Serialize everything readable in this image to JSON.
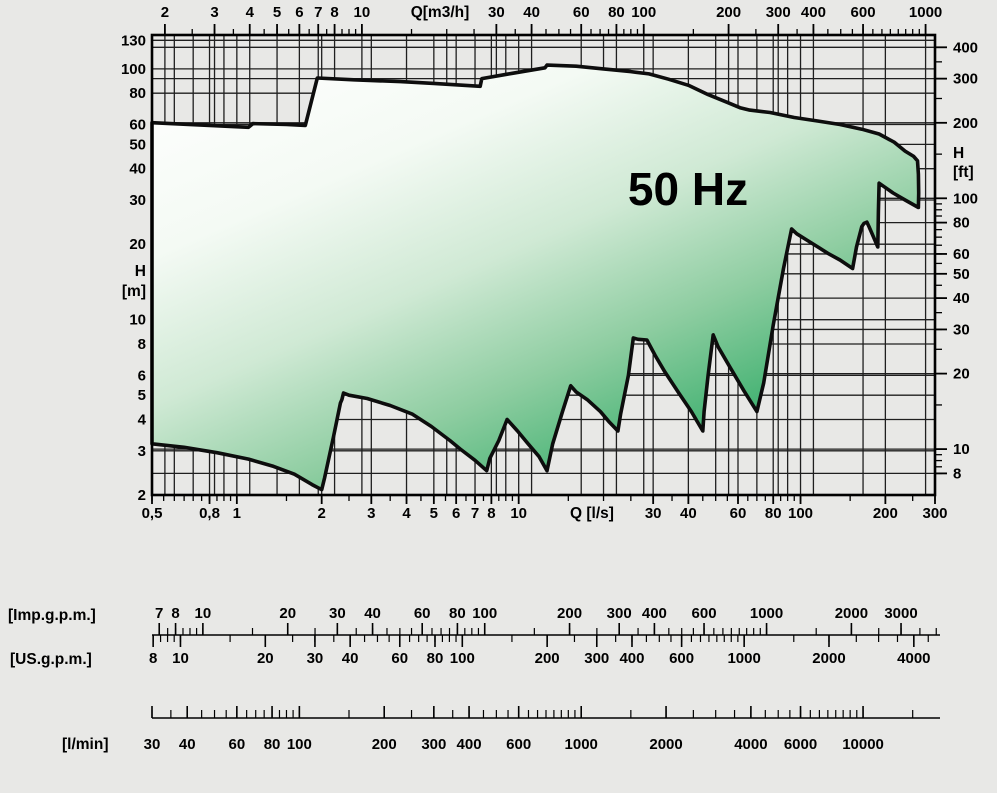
{
  "title": "50 Hz",
  "chart_data": {
    "type": "area",
    "description": "Pump family hydraulic coverage envelope (head H vs flow Q) on log-log axes",
    "title": "50 Hz",
    "grid": true,
    "legend": "none",
    "axes": {
      "q_ls": {
        "label": "Q [l/s]",
        "min": 0.5,
        "max": 300,
        "tick_labels": [
          "0,5",
          "0,8",
          "1",
          "2",
          "3",
          "4",
          "5",
          "6",
          "7",
          "8",
          "10",
          "30",
          "40",
          "60",
          "80",
          "100",
          "200",
          "300"
        ],
        "tick_values": [
          0.5,
          0.8,
          1,
          2,
          3,
          4,
          5,
          6,
          7,
          8,
          10,
          30,
          40,
          60,
          80,
          100,
          200,
          300
        ]
      },
      "q_m3h": {
        "label": "Q[m3/h]",
        "to_ls": 0.2777778,
        "tick_values": [
          2,
          3,
          4,
          5,
          6,
          7,
          8,
          10,
          30,
          40,
          60,
          80,
          100,
          200,
          300,
          400,
          600,
          1000
        ]
      },
      "h_m": {
        "label_line1": "H",
        "label_line2": "[m]",
        "min": 2,
        "max": 136.5,
        "tick_values": [
          2,
          3,
          4,
          5,
          6,
          8,
          10,
          20,
          30,
          40,
          50,
          60,
          80,
          100,
          130
        ]
      },
      "h_ft": {
        "label_line1": "H",
        "label_line2": "[ft]",
        "to_m": 0.3048,
        "tick_values": [
          8,
          10,
          20,
          30,
          40,
          50,
          60,
          80,
          100,
          200,
          300,
          400
        ]
      }
    },
    "gridlines": {
      "v_ls": [
        0.6,
        0.7,
        0.8,
        0.9,
        1,
        2,
        3,
        4,
        5,
        6,
        7,
        8,
        9,
        10,
        20,
        30,
        40,
        50,
        60,
        70,
        80,
        90,
        100,
        200
      ],
      "v_m3h": [
        2,
        3,
        4,
        5,
        6,
        7,
        8,
        10,
        20,
        30,
        40,
        60,
        80,
        100,
        200,
        300,
        400,
        600,
        1000
      ],
      "h_m": [
        3,
        4,
        5,
        6,
        8,
        10,
        20,
        30,
        40,
        50,
        60,
        80,
        100,
        130
      ],
      "h_ft": [
        8,
        10,
        20,
        30,
        40,
        50,
        60,
        80,
        100,
        200,
        300,
        400
      ]
    },
    "envelope": {
      "units": [
        "Q l/s",
        "H m"
      ],
      "points": [
        [
          0.5,
          61
        ],
        [
          0.8,
          59.5
        ],
        [
          1.1,
          58.5
        ],
        [
          1.14,
          60.5
        ],
        [
          1.5,
          60
        ],
        [
          1.75,
          59.5
        ],
        [
          1.93,
          92
        ],
        [
          2.6,
          90.5
        ],
        [
          3.8,
          89
        ],
        [
          5.0,
          87.5
        ],
        [
          6.4,
          86
        ],
        [
          7.3,
          85.2
        ],
        [
          7.4,
          91.5
        ],
        [
          9.5,
          96
        ],
        [
          12.4,
          101
        ],
        [
          12.6,
          103.5
        ],
        [
          16,
          102.5
        ],
        [
          20,
          100
        ],
        [
          25,
          97.5
        ],
        [
          29,
          95.5
        ],
        [
          34,
          91
        ],
        [
          40,
          86
        ],
        [
          47,
          79
        ],
        [
          55,
          73.5
        ],
        [
          61,
          70
        ],
        [
          66,
          68.5
        ],
        [
          78,
          67
        ],
        [
          95,
          64
        ],
        [
          115,
          62
        ],
        [
          138,
          60
        ],
        [
          165,
          57.5
        ],
        [
          190,
          55
        ],
        [
          215,
          51
        ],
        [
          235,
          47
        ],
        [
          252,
          44.8
        ],
        [
          260,
          43
        ],
        [
          262,
          38
        ],
        [
          262.5,
          32
        ],
        [
          262,
          28
        ],
        [
          235,
          30
        ],
        [
          213,
          32
        ],
        [
          190,
          35
        ],
        [
          189,
          27
        ],
        [
          188,
          19.5
        ],
        [
          181,
          21.5
        ],
        [
          175,
          23.5
        ],
        [
          172,
          24.5
        ],
        [
          168,
          24.2
        ],
        [
          165,
          23.5
        ],
        [
          158,
          19.5
        ],
        [
          153,
          16
        ],
        [
          138,
          17.3
        ],
        [
          125,
          18.4
        ],
        [
          117,
          19.3
        ],
        [
          105,
          20.8
        ],
        [
          97,
          22
        ],
        [
          93,
          23
        ],
        [
          87,
          16
        ],
        [
          80,
          9.5
        ],
        [
          74,
          5.6
        ],
        [
          70,
          4.3
        ],
        [
          63,
          5.2
        ],
        [
          56,
          6.5
        ],
        [
          51,
          7.8
        ],
        [
          49,
          8.7
        ],
        [
          47,
          6
        ],
        [
          45.5,
          4.3
        ],
        [
          45,
          3.6
        ],
        [
          41,
          4.3
        ],
        [
          37,
          5.1
        ],
        [
          33,
          6.2
        ],
        [
          30.5,
          7.2
        ],
        [
          28.5,
          8.3
        ],
        [
          26.5,
          8.35
        ],
        [
          25.5,
          8.45
        ],
        [
          24.5,
          6
        ],
        [
          23,
          4.2
        ],
        [
          22.5,
          3.6
        ],
        [
          21,
          3.9
        ],
        [
          19.5,
          4.3
        ],
        [
          17.5,
          4.8
        ],
        [
          16,
          5.15
        ],
        [
          15.3,
          5.45
        ],
        [
          14.3,
          4.3
        ],
        [
          13.2,
          3.2
        ],
        [
          12.6,
          2.5
        ],
        [
          11.8,
          2.85
        ],
        [
          10.8,
          3.2
        ],
        [
          9.9,
          3.6
        ],
        [
          9.1,
          4.0
        ],
        [
          8.5,
          3.3
        ],
        [
          7.9,
          2.8
        ],
        [
          7.7,
          2.5
        ],
        [
          7.0,
          2.75
        ],
        [
          6.2,
          3.05
        ],
        [
          5.7,
          3.3
        ],
        [
          4.9,
          3.75
        ],
        [
          4.2,
          4.2
        ],
        [
          3.5,
          4.55
        ],
        [
          2.9,
          4.85
        ],
        [
          2.5,
          5.0
        ],
        [
          2.39,
          5.1
        ],
        [
          2.36,
          4.8
        ],
        [
          2.33,
          4.65
        ],
        [
          2.2,
          3.4
        ],
        [
          2.05,
          2.35
        ],
        [
          2.0,
          2.1
        ],
        [
          1.85,
          2.2
        ],
        [
          1.6,
          2.42
        ],
        [
          1.35,
          2.6
        ],
        [
          1.1,
          2.78
        ],
        [
          0.85,
          2.95
        ],
        [
          0.65,
          3.1
        ],
        [
          0.5,
          3.2
        ]
      ]
    },
    "scales": {
      "imp_gpm": {
        "label": "[Imp.g.p.m.]",
        "to_ls": 0.0757682,
        "tick_values": [
          7,
          8,
          10,
          20,
          30,
          40,
          60,
          80,
          100,
          200,
          300,
          400,
          600,
          1000,
          2000,
          3000
        ],
        "tick_labels": [
          "7",
          "8",
          "10",
          "20",
          "30",
          "40",
          "60",
          "80",
          "100",
          "200",
          "300",
          "400",
          "600",
          "1000",
          "2000",
          "3000"
        ]
      },
      "us_gpm": {
        "label": "[US.g.p.m.]",
        "to_ls": 0.0630902,
        "tick_values": [
          8,
          10,
          20,
          30,
          40,
          60,
          80,
          100,
          200,
          300,
          400,
          600,
          1000,
          2000,
          4000
        ],
        "tick_labels": [
          "8",
          "10",
          "20",
          "30",
          "40",
          "60",
          "80",
          "100",
          "200",
          "300",
          "400",
          "600",
          "1000",
          "2000",
          "4000"
        ]
      },
      "l_min": {
        "label": "[l/min]",
        "to_ls": 0.0166667,
        "tick_values": [
          30,
          40,
          60,
          80,
          100,
          200,
          300,
          400,
          600,
          1000,
          2000,
          4000,
          6000,
          10000
        ],
        "tick_labels": [
          "30",
          "40",
          "60",
          "80",
          "100",
          "200",
          "300",
          "400",
          "600",
          "1000",
          "2000",
          "4000",
          "6000",
          "10000"
        ]
      }
    },
    "colors": {
      "background": "#e8e8e6",
      "grid": "#1f1f1f",
      "outline": "#0d0d0d",
      "text": "#000000",
      "fill_stops": [
        "#ffffff",
        "#f4faf4",
        "#cfe9d4",
        "#8ecda1",
        "#46b374",
        "#26a45e"
      ]
    }
  }
}
